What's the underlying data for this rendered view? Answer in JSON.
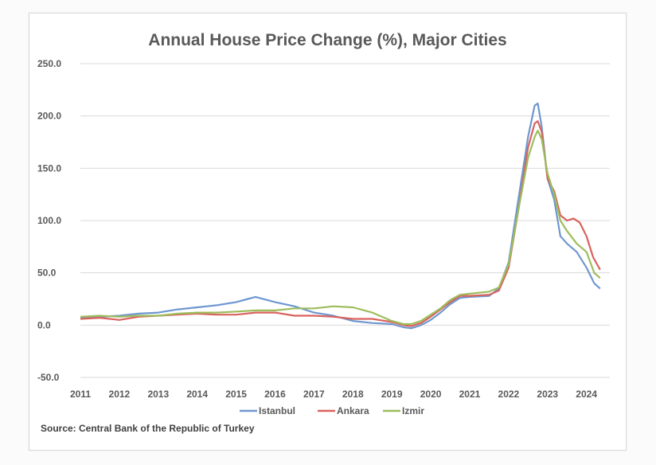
{
  "chart_data": {
    "type": "line",
    "title": "Annual House Price Change (%), Major Cities",
    "xlabel": "",
    "ylabel": "",
    "xlim": [
      2011.0,
      2024.6
    ],
    "ylim": [
      -50,
      250
    ],
    "y_ticks": [
      "250.0",
      "200.0",
      "150.0",
      "100.0",
      "50.0",
      "0.0",
      "-50.0"
    ],
    "y_tick_values": [
      250,
      200,
      150,
      100,
      50,
      0,
      -50
    ],
    "x_ticks": [
      "2011",
      "2012",
      "2013",
      "2014",
      "2015",
      "2016",
      "2017",
      "2018",
      "2019",
      "2020",
      "2021",
      "2022",
      "2023",
      "2024"
    ],
    "x_tick_values": [
      2011,
      2012,
      2013,
      2014,
      2015,
      2016,
      2017,
      2018,
      2019,
      2020,
      2021,
      2022,
      2023,
      2024
    ],
    "grid": "horizontal",
    "legend_position": "bottom",
    "series": [
      {
        "name": "Istanbul",
        "color": "#6f97cf",
        "x": [
          2011.0,
          2011.5,
          2012.0,
          2012.5,
          2013.0,
          2013.5,
          2014.0,
          2014.5,
          2015.0,
          2015.3,
          2015.5,
          2015.8,
          2016.0,
          2016.5,
          2017.0,
          2017.5,
          2018.0,
          2018.5,
          2019.0,
          2019.3,
          2019.5,
          2019.75,
          2020.0,
          2020.25,
          2020.5,
          2020.75,
          2021.0,
          2021.5,
          2021.75,
          2022.0,
          2022.25,
          2022.5,
          2022.67,
          2022.75,
          2022.85,
          2023.0,
          2023.17,
          2023.33,
          2023.5,
          2023.75,
          2024.0,
          2024.2,
          2024.35
        ],
        "y": [
          7,
          8,
          9,
          11,
          12,
          15,
          17,
          19,
          22,
          25,
          27,
          24,
          22,
          18,
          12,
          9,
          4,
          2,
          1,
          -2,
          -3,
          0,
          5,
          12,
          20,
          26,
          27,
          28,
          35,
          60,
          120,
          180,
          210,
          212,
          190,
          140,
          120,
          85,
          78,
          70,
          55,
          40,
          35
        ]
      },
      {
        "name": "Ankara",
        "color": "#d9625e",
        "x": [
          2011.0,
          2011.5,
          2012.0,
          2012.5,
          2013.0,
          2013.5,
          2014.0,
          2014.5,
          2015.0,
          2015.5,
          2016.0,
          2016.5,
          2017.0,
          2017.5,
          2018.0,
          2018.5,
          2019.0,
          2019.3,
          2019.5,
          2019.75,
          2020.0,
          2020.25,
          2020.5,
          2020.75,
          2021.0,
          2021.5,
          2021.75,
          2022.0,
          2022.25,
          2022.5,
          2022.67,
          2022.75,
          2022.85,
          2023.0,
          2023.17,
          2023.33,
          2023.5,
          2023.67,
          2023.83,
          2024.0,
          2024.17,
          2024.35
        ],
        "y": [
          6,
          7,
          5,
          8,
          9,
          10,
          11,
          10,
          10,
          12,
          12,
          9,
          9,
          8,
          6,
          6,
          3,
          0,
          -1,
          2,
          8,
          15,
          22,
          28,
          28,
          29,
          33,
          55,
          110,
          170,
          193,
          195,
          185,
          140,
          128,
          105,
          100,
          102,
          98,
          85,
          65,
          53
        ]
      },
      {
        "name": "Izmir",
        "color": "#9dbd5c",
        "x": [
          2011.0,
          2011.5,
          2012.0,
          2012.5,
          2013.0,
          2013.5,
          2014.0,
          2014.5,
          2015.0,
          2015.5,
          2016.0,
          2016.5,
          2017.0,
          2017.5,
          2018.0,
          2018.5,
          2019.0,
          2019.3,
          2019.5,
          2019.75,
          2020.0,
          2020.25,
          2020.5,
          2020.75,
          2021.0,
          2021.5,
          2021.75,
          2022.0,
          2022.25,
          2022.5,
          2022.67,
          2022.75,
          2022.85,
          2023.0,
          2023.17,
          2023.33,
          2023.5,
          2023.75,
          2024.0,
          2024.2,
          2024.35
        ],
        "y": [
          8,
          9,
          8,
          9,
          9,
          11,
          12,
          12,
          13,
          14,
          14,
          16,
          16,
          18,
          17,
          12,
          4,
          1,
          1,
          4,
          10,
          16,
          24,
          29,
          30,
          32,
          36,
          58,
          110,
          160,
          180,
          186,
          178,
          145,
          125,
          100,
          90,
          78,
          70,
          50,
          45
        ]
      }
    ]
  },
  "source_text": "Source: Central Bank of the Republic of Turkey"
}
